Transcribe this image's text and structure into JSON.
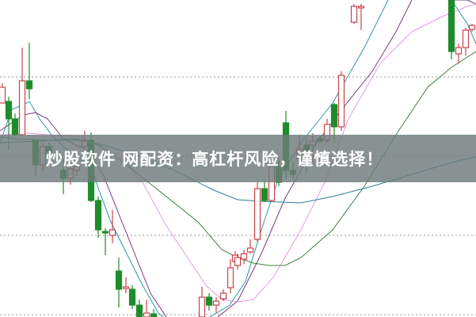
{
  "banner": {
    "text": "炒股软件 网配资：高杠杆风险，谨慎选择！"
  },
  "chart_data": {
    "type": "candlestick",
    "ylim": [
      0,
      40
    ],
    "xlim": [
      0,
      60.1
    ],
    "grid": "dotted horizontal",
    "gridlines": [
      30.3,
      20.3,
      10.3,
      0.3
    ],
    "colors": {
      "up": "#c8434a",
      "down": "#1e8c2a",
      "grid": "#999999"
    },
    "candles": [
      {
        "t": 0.3,
        "o": 27.0,
        "c": 29.0,
        "h": 29.5,
        "l": 27.0
      },
      {
        "t": 1.1,
        "o": 27.2,
        "c": 25.0,
        "h": 27.8,
        "l": 21.0
      },
      {
        "t": 1.9,
        "o": 25.0,
        "c": 23.0,
        "h": 25.7,
        "l": 22.8
      },
      {
        "t": 2.8,
        "o": 23.0,
        "c": 29.8,
        "h": 34.0,
        "l": 22.8
      },
      {
        "t": 3.7,
        "o": 29.8,
        "c": 28.8,
        "h": 34.6,
        "l": 27.5
      },
      {
        "t": 4.5,
        "o": 22.3,
        "c": 19.2,
        "h": 22.3,
        "l": 17.7
      },
      {
        "t": 5.4,
        "o": 19.2,
        "c": 21.5,
        "h": 22.0,
        "l": 18.5
      },
      {
        "t": 6.2,
        "o": 21.5,
        "c": 20.8,
        "h": 22.0,
        "l": 20.0
      },
      {
        "t": 8.0,
        "o": 18.5,
        "c": 17.5,
        "h": 20.0,
        "l": 15.5
      },
      {
        "t": 8.9,
        "o": 17.5,
        "c": 18.7,
        "h": 19.0,
        "l": 16.7
      },
      {
        "t": 9.7,
        "o": 18.5,
        "c": 19.0,
        "h": 19.5,
        "l": 17.8
      },
      {
        "t": 10.7,
        "o": 21.5,
        "c": 22.2,
        "h": 23.5,
        "l": 21.3
      },
      {
        "t": 11.5,
        "o": 22.3,
        "c": 14.7,
        "h": 23.3,
        "l": 14.5
      },
      {
        "t": 12.4,
        "o": 14.7,
        "c": 11.0,
        "h": 15.2,
        "l": 10.0
      },
      {
        "t": 13.3,
        "o": 10.8,
        "c": 10.6,
        "h": 11.2,
        "l": 7.8
      },
      {
        "t": 14.2,
        "o": 10.3,
        "c": 11.0,
        "h": 13.5,
        "l": 9.3
      },
      {
        "t": 15.0,
        "o": 5.8,
        "c": 3.5,
        "h": 7.5,
        "l": 1.2
      },
      {
        "t": 15.9,
        "o": 3.6,
        "c": 3.8,
        "h": 5.0,
        "l": 3.0
      },
      {
        "t": 16.7,
        "o": 3.5,
        "c": 1.5,
        "h": 4.0,
        "l": 1.0
      },
      {
        "t": 17.6,
        "o": 1.5,
        "c": 0.0,
        "h": 2.2,
        "l": 0.0
      },
      {
        "t": 18.5,
        "o": 0.0,
        "c": 0.5,
        "h": 2.2,
        "l": 0.0
      },
      {
        "t": 19.4,
        "o": 0.4,
        "c": 0.0,
        "h": 1.0,
        "l": 0.0
      },
      {
        "t": 25.5,
        "o": 0.0,
        "c": 2.5,
        "h": 3.8,
        "l": 0.0
      },
      {
        "t": 26.4,
        "o": 2.5,
        "c": 1.5,
        "h": 3.0,
        "l": 0.8
      },
      {
        "t": 27.3,
        "o": 1.5,
        "c": 2.0,
        "h": 2.5,
        "l": 0.5
      },
      {
        "t": 28.2,
        "o": 2.3,
        "c": 3.0,
        "h": 3.5,
        "l": 2.0
      },
      {
        "t": 29.1,
        "o": 3.7,
        "c": 6.2,
        "h": 7.3,
        "l": 3.0
      },
      {
        "t": 29.7,
        "o": 7.0,
        "c": 7.8,
        "h": 8.3,
        "l": 6.5
      },
      {
        "t": 30.0,
        "o": 6.5,
        "c": 7.5,
        "h": 8.0,
        "l": 6.0
      },
      {
        "t": 30.8,
        "o": 7.3,
        "c": 8.0,
        "h": 8.5,
        "l": 6.7
      },
      {
        "t": 31.6,
        "o": 8.2,
        "c": 8.7,
        "h": 9.8,
        "l": 8.0
      },
      {
        "t": 32.5,
        "o": 9.8,
        "c": 16.2,
        "h": 17.0,
        "l": 9.5
      },
      {
        "t": 33.4,
        "o": 16.2,
        "c": 14.7,
        "h": 17.2,
        "l": 14.5
      },
      {
        "t": 34.3,
        "o": 14.7,
        "c": 19.0,
        "h": 19.5,
        "l": 14.5
      },
      {
        "t": 35.2,
        "o": 19.0,
        "c": 17.0,
        "h": 20.0,
        "l": 16.5
      },
      {
        "t": 36.1,
        "o": 24.5,
        "c": 18.5,
        "h": 26.0,
        "l": 17.5
      },
      {
        "t": 37.0,
        "o": 18.5,
        "c": 18.0,
        "h": 19.5,
        "l": 17.5
      },
      {
        "t": 37.8,
        "o": 20.0,
        "c": 21.2,
        "h": 23.0,
        "l": 19.5
      },
      {
        "t": 38.7,
        "o": 21.7,
        "c": 21.0,
        "h": 22.5,
        "l": 18.2
      },
      {
        "t": 39.5,
        "o": 21.7,
        "c": 22.2,
        "h": 23.2,
        "l": 19.5
      },
      {
        "t": 40.4,
        "o": 22.5,
        "c": 22.2,
        "h": 22.8,
        "l": 22.0
      },
      {
        "t": 41.3,
        "o": 22.3,
        "c": 24.3,
        "h": 25.0,
        "l": 22.0
      },
      {
        "t": 42.2,
        "o": 26.8,
        "c": 24.0,
        "h": 27.0,
        "l": 22.0
      },
      {
        "t": 43.1,
        "o": 24.0,
        "c": 30.5,
        "h": 31.0,
        "l": 23.5
      },
      {
        "t": 44.7,
        "o": 37.2,
        "c": 39.2,
        "h": 39.5,
        "l": 37.0
      },
      {
        "t": 45.6,
        "o": 39.0,
        "c": 39.2,
        "h": 39.5,
        "l": 36.2
      },
      {
        "t": 57.0,
        "o": 40.0,
        "c": 33.5,
        "h": 40.0,
        "l": 32.5
      },
      {
        "t": 57.9,
        "o": 33.2,
        "c": 34.0,
        "h": 34.5,
        "l": 32.0
      },
      {
        "t": 58.8,
        "o": 34.0,
        "c": 36.2,
        "h": 36.5,
        "l": 33.0
      },
      {
        "t": 59.6,
        "o": 36.3,
        "c": 36.8,
        "h": 37.0,
        "l": 36.0
      }
    ],
    "lines": [
      {
        "color": "#2a9aa8",
        "points": [
          [
            0,
            22
          ],
          [
            1.5,
            26.2
          ],
          [
            3,
            26.8
          ],
          [
            3.7,
            27.2
          ],
          [
            5,
            25
          ],
          [
            6.5,
            23
          ],
          [
            8,
            21.5
          ],
          [
            10,
            20
          ],
          [
            11.5,
            19
          ],
          [
            12.5,
            16
          ],
          [
            14,
            12
          ],
          [
            16,
            8
          ],
          [
            18,
            4
          ],
          [
            20,
            0.5
          ],
          [
            23,
            -2
          ],
          [
            26.5,
            0
          ],
          [
            29,
            1.5
          ],
          [
            31,
            4.5
          ],
          [
            33,
            11
          ],
          [
            35,
            17
          ],
          [
            38,
            22
          ],
          [
            42,
            27
          ],
          [
            46,
            34
          ],
          [
            49,
            40
          ]
        ]
      },
      {
        "color": "#2a9aa8",
        "points": [
          [
            57,
            40
          ],
          [
            59,
            37
          ],
          [
            60.1,
            34.5
          ]
        ]
      },
      {
        "color": "#7a3a7a",
        "points": [
          [
            0,
            23.5
          ],
          [
            3,
            25.5
          ],
          [
            4.5,
            25.8
          ],
          [
            6,
            25
          ],
          [
            8,
            22.5
          ],
          [
            11,
            21
          ],
          [
            13,
            18
          ],
          [
            15,
            13
          ],
          [
            17,
            8
          ],
          [
            19,
            3
          ],
          [
            21,
            0
          ],
          [
            25,
            -2
          ],
          [
            30,
            2
          ],
          [
            33,
            8
          ],
          [
            36,
            15
          ],
          [
            40,
            22
          ],
          [
            43,
            26
          ],
          [
            47,
            31
          ],
          [
            50,
            36
          ],
          [
            52,
            40
          ]
        ]
      },
      {
        "color": "#7a3a7a",
        "points": [
          [
            57,
            40
          ],
          [
            59,
            40
          ],
          [
            60.1,
            39.5
          ]
        ]
      },
      {
        "color": "#e89ae8",
        "points": [
          [
            0,
            23
          ],
          [
            3.5,
            23.2
          ],
          [
            6,
            23
          ],
          [
            10,
            22.8
          ],
          [
            15,
            20.5
          ],
          [
            18,
            17
          ],
          [
            21,
            11.5
          ],
          [
            24,
            7
          ],
          [
            26,
            4
          ],
          [
            28,
            2.2
          ],
          [
            30,
            1.9
          ],
          [
            32,
            2.2
          ],
          [
            34.5,
            5
          ],
          [
            38,
            11
          ],
          [
            41,
            17
          ],
          [
            44,
            25
          ],
          [
            48,
            32
          ],
          [
            52,
            36
          ],
          [
            56,
            38
          ],
          [
            59,
            39.2
          ],
          [
            60.1,
            39.5
          ]
        ]
      },
      {
        "color": "#3f7f3f",
        "points": [
          [
            0,
            22
          ],
          [
            5,
            22.2
          ],
          [
            9,
            22.5
          ],
          [
            11.5,
            22.2
          ],
          [
            15,
            20
          ],
          [
            20,
            16
          ],
          [
            25,
            12
          ],
          [
            28,
            8.5
          ],
          [
            30,
            7.5
          ],
          [
            32,
            6.8
          ],
          [
            34,
            6.5
          ],
          [
            36,
            6.5
          ],
          [
            38,
            7.5
          ],
          [
            42,
            11
          ],
          [
            46,
            16.5
          ],
          [
            50,
            23
          ],
          [
            54,
            29
          ],
          [
            57,
            31.5
          ],
          [
            60.1,
            33.5
          ]
        ]
      },
      {
        "color": "#2f7f8f",
        "points": [
          [
            0,
            22.7
          ],
          [
            2,
            22.5
          ],
          [
            6,
            22.3
          ],
          [
            10,
            22.3
          ],
          [
            13,
            21.7
          ],
          [
            17,
            20.5
          ],
          [
            22,
            18.5
          ],
          [
            27,
            16
          ],
          [
            30,
            14.8
          ],
          [
            33,
            14.6
          ],
          [
            38,
            14.4
          ],
          [
            42,
            15.2
          ],
          [
            47,
            16.5
          ],
          [
            52,
            18
          ],
          [
            57,
            19.5
          ],
          [
            60.1,
            20.2
          ]
        ]
      }
    ]
  }
}
